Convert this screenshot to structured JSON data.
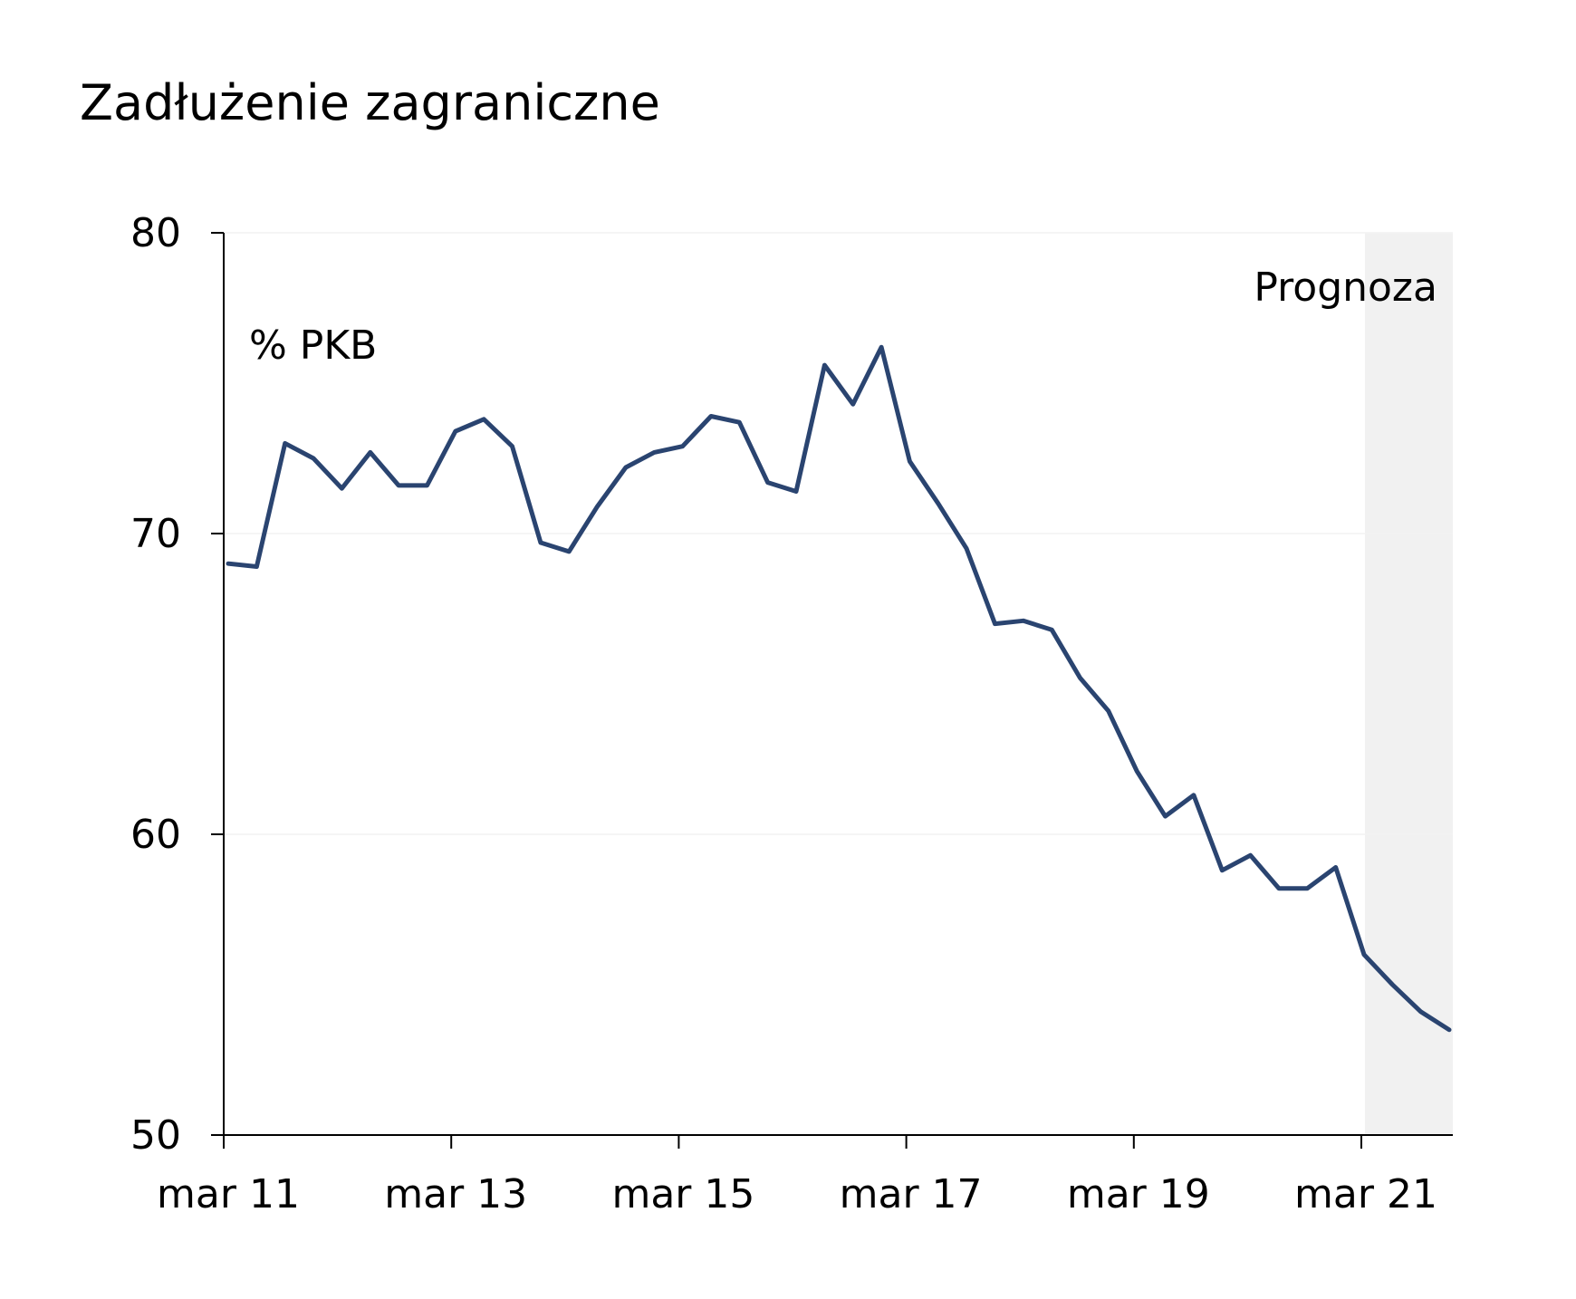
{
  "chart_data": {
    "type": "line",
    "title": "Zadłużenie zagraniczne",
    "unit_label": "% PKB",
    "forecast_label": "Prognoza",
    "xlabel": "",
    "ylabel": "",
    "ylim": [
      50,
      80
    ],
    "yticks": [
      50,
      60,
      70,
      80
    ],
    "xtick_labels": [
      "mar 11",
      "mar 13",
      "mar 15",
      "mar 17",
      "mar 19",
      "mar 21"
    ],
    "x_start": "2011-03",
    "forecast_start": "2021-03",
    "grid": true,
    "colors": {
      "line": "#2a4470",
      "forecast_band": "#f1f1f1",
      "grid": "#f2f2f2",
      "axis": "#000000"
    },
    "series": [
      {
        "values": [
          69.0,
          68.9,
          73.0,
          72.5,
          71.5,
          72.7,
          71.6,
          71.6,
          73.4,
          73.8,
          72.9,
          69.7,
          69.4,
          70.9,
          72.2,
          72.7,
          72.9,
          73.9,
          73.7,
          71.7,
          71.4,
          75.6,
          74.3,
          76.2,
          72.4,
          71.0,
          69.5,
          67.0,
          67.1,
          66.8,
          65.2,
          64.1,
          62.1,
          60.6,
          61.3,
          58.8,
          59.3,
          58.2,
          58.2,
          58.9,
          56.0,
          55.0,
          54.1,
          53.5
        ]
      }
    ]
  }
}
